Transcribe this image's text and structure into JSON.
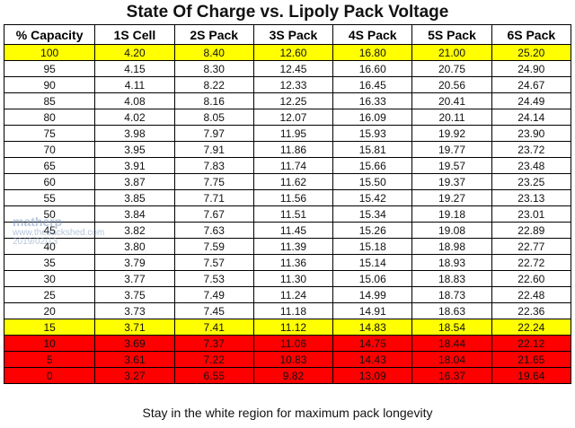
{
  "title": "State Of Charge vs. Lipoly Pack Voltage",
  "headers": [
    "% Capacity",
    "1S Cell",
    "2S Pack",
    "3S Pack",
    "4S Pack",
    "5S Pack",
    "6S Pack"
  ],
  "rows": [
    {
      "status": "yellow",
      "cells": [
        "100",
        "4.20",
        "8.40",
        "12.60",
        "16.80",
        "21.00",
        "25.20"
      ]
    },
    {
      "status": "white",
      "cells": [
        "95",
        "4.15",
        "8.30",
        "12.45",
        "16.60",
        "20.75",
        "24.90"
      ]
    },
    {
      "status": "white",
      "cells": [
        "90",
        "4.11",
        "8.22",
        "12.33",
        "16.45",
        "20.56",
        "24.67"
      ]
    },
    {
      "status": "white",
      "cells": [
        "85",
        "4.08",
        "8.16",
        "12.25",
        "16.33",
        "20.41",
        "24.49"
      ]
    },
    {
      "status": "white",
      "cells": [
        "80",
        "4.02",
        "8.05",
        "12.07",
        "16.09",
        "20.11",
        "24.14"
      ]
    },
    {
      "status": "white",
      "cells": [
        "75",
        "3.98",
        "7.97",
        "11.95",
        "15.93",
        "19.92",
        "23.90"
      ]
    },
    {
      "status": "white",
      "cells": [
        "70",
        "3.95",
        "7.91",
        "11.86",
        "15.81",
        "19.77",
        "23.72"
      ]
    },
    {
      "status": "white",
      "cells": [
        "65",
        "3.91",
        "7.83",
        "11.74",
        "15.66",
        "19.57",
        "23.48"
      ]
    },
    {
      "status": "white",
      "cells": [
        "60",
        "3.87",
        "7.75",
        "11.62",
        "15.50",
        "19.37",
        "23.25"
      ]
    },
    {
      "status": "white",
      "cells": [
        "55",
        "3.85",
        "7.71",
        "11.56",
        "15.42",
        "19.27",
        "23.13"
      ]
    },
    {
      "status": "white",
      "cells": [
        "50",
        "3.84",
        "7.67",
        "11.51",
        "15.34",
        "19.18",
        "23.01"
      ]
    },
    {
      "status": "white",
      "cells": [
        "45",
        "3.82",
        "7.63",
        "11.45",
        "15.26",
        "19.08",
        "22.89"
      ]
    },
    {
      "status": "white",
      "cells": [
        "40",
        "3.80",
        "7.59",
        "11.39",
        "15.18",
        "18.98",
        "22.77"
      ]
    },
    {
      "status": "white",
      "cells": [
        "35",
        "3.79",
        "7.57",
        "11.36",
        "15.14",
        "18.93",
        "22.72"
      ]
    },
    {
      "status": "white",
      "cells": [
        "30",
        "3.77",
        "7.53",
        "11.30",
        "15.06",
        "18.83",
        "22.60"
      ]
    },
    {
      "status": "white",
      "cells": [
        "25",
        "3.75",
        "7.49",
        "11.24",
        "14.99",
        "18.73",
        "22.48"
      ]
    },
    {
      "status": "white",
      "cells": [
        "20",
        "3.73",
        "7.45",
        "11.18",
        "14.91",
        "18.63",
        "22.36"
      ]
    },
    {
      "status": "yellow",
      "cells": [
        "15",
        "3.71",
        "7.41",
        "11.12",
        "14.83",
        "18.54",
        "22.24"
      ]
    },
    {
      "status": "red",
      "cells": [
        "10",
        "3.69",
        "7.37",
        "11.06",
        "14.75",
        "18.44",
        "22.12"
      ]
    },
    {
      "status": "red",
      "cells": [
        "5",
        "3.61",
        "7.22",
        "10.83",
        "14.43",
        "18.04",
        "21.65"
      ]
    },
    {
      "status": "red",
      "cells": [
        "0",
        "3.27",
        "6.55",
        "9.82",
        "13.09",
        "16.37",
        "19.64"
      ]
    }
  ],
  "footer": "Stay in the white region for maximum pack longevity",
  "watermark": {
    "name": "matherp",
    "url": "www.thebackshed.com",
    "date": "2019/02/13"
  },
  "colors": {
    "yellow": "#ffff00",
    "red": "#ff0000",
    "white": "#ffffff"
  }
}
